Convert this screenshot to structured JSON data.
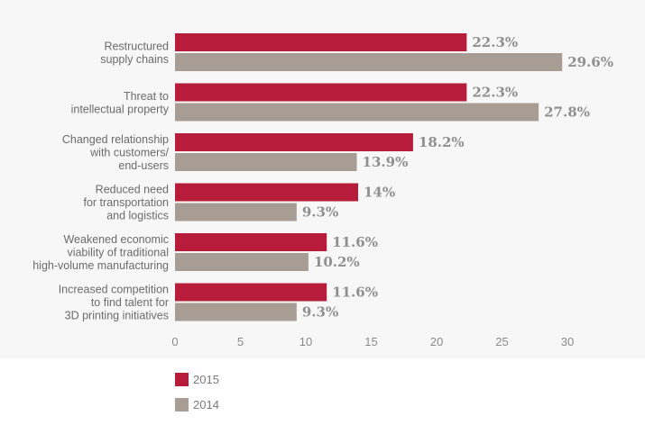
{
  "chart_data": {
    "type": "bar",
    "orientation": "horizontal",
    "categories": [
      [
        "Restructured",
        "supply chains"
      ],
      [
        "Threat to",
        "intellectual property"
      ],
      [
        "Changed relationship",
        "with customers/",
        "end-users"
      ],
      [
        "Reduced need",
        "for transportation",
        "and logistics"
      ],
      [
        "Weakened economic",
        "viability of traditional",
        "high-volume manufacturing"
      ],
      [
        "Increased competition",
        "to find talent for",
        "3D printing initiatives"
      ]
    ],
    "series": [
      {
        "name": "2015",
        "color": "#b71c3a",
        "values": [
          22.3,
          22.3,
          18.2,
          14,
          11.6,
          11.6
        ],
        "labels": [
          "22.3%",
          "22.3%",
          "18.2%",
          "14%",
          "11.6%",
          "11.6%"
        ]
      },
      {
        "name": "2014",
        "color": "#a79d95",
        "values": [
          29.6,
          27.8,
          13.9,
          9.3,
          10.2,
          9.3
        ],
        "labels": [
          "29.6%",
          "27.8%",
          "13.9%",
          "9.3%",
          "10.2%",
          "9.3%"
        ]
      }
    ],
    "xlim": [
      0,
      30
    ],
    "xticks": [
      "0",
      "5",
      "10",
      "15",
      "20",
      "25",
      "30"
    ],
    "grid": false,
    "legend": "bottom-left"
  }
}
